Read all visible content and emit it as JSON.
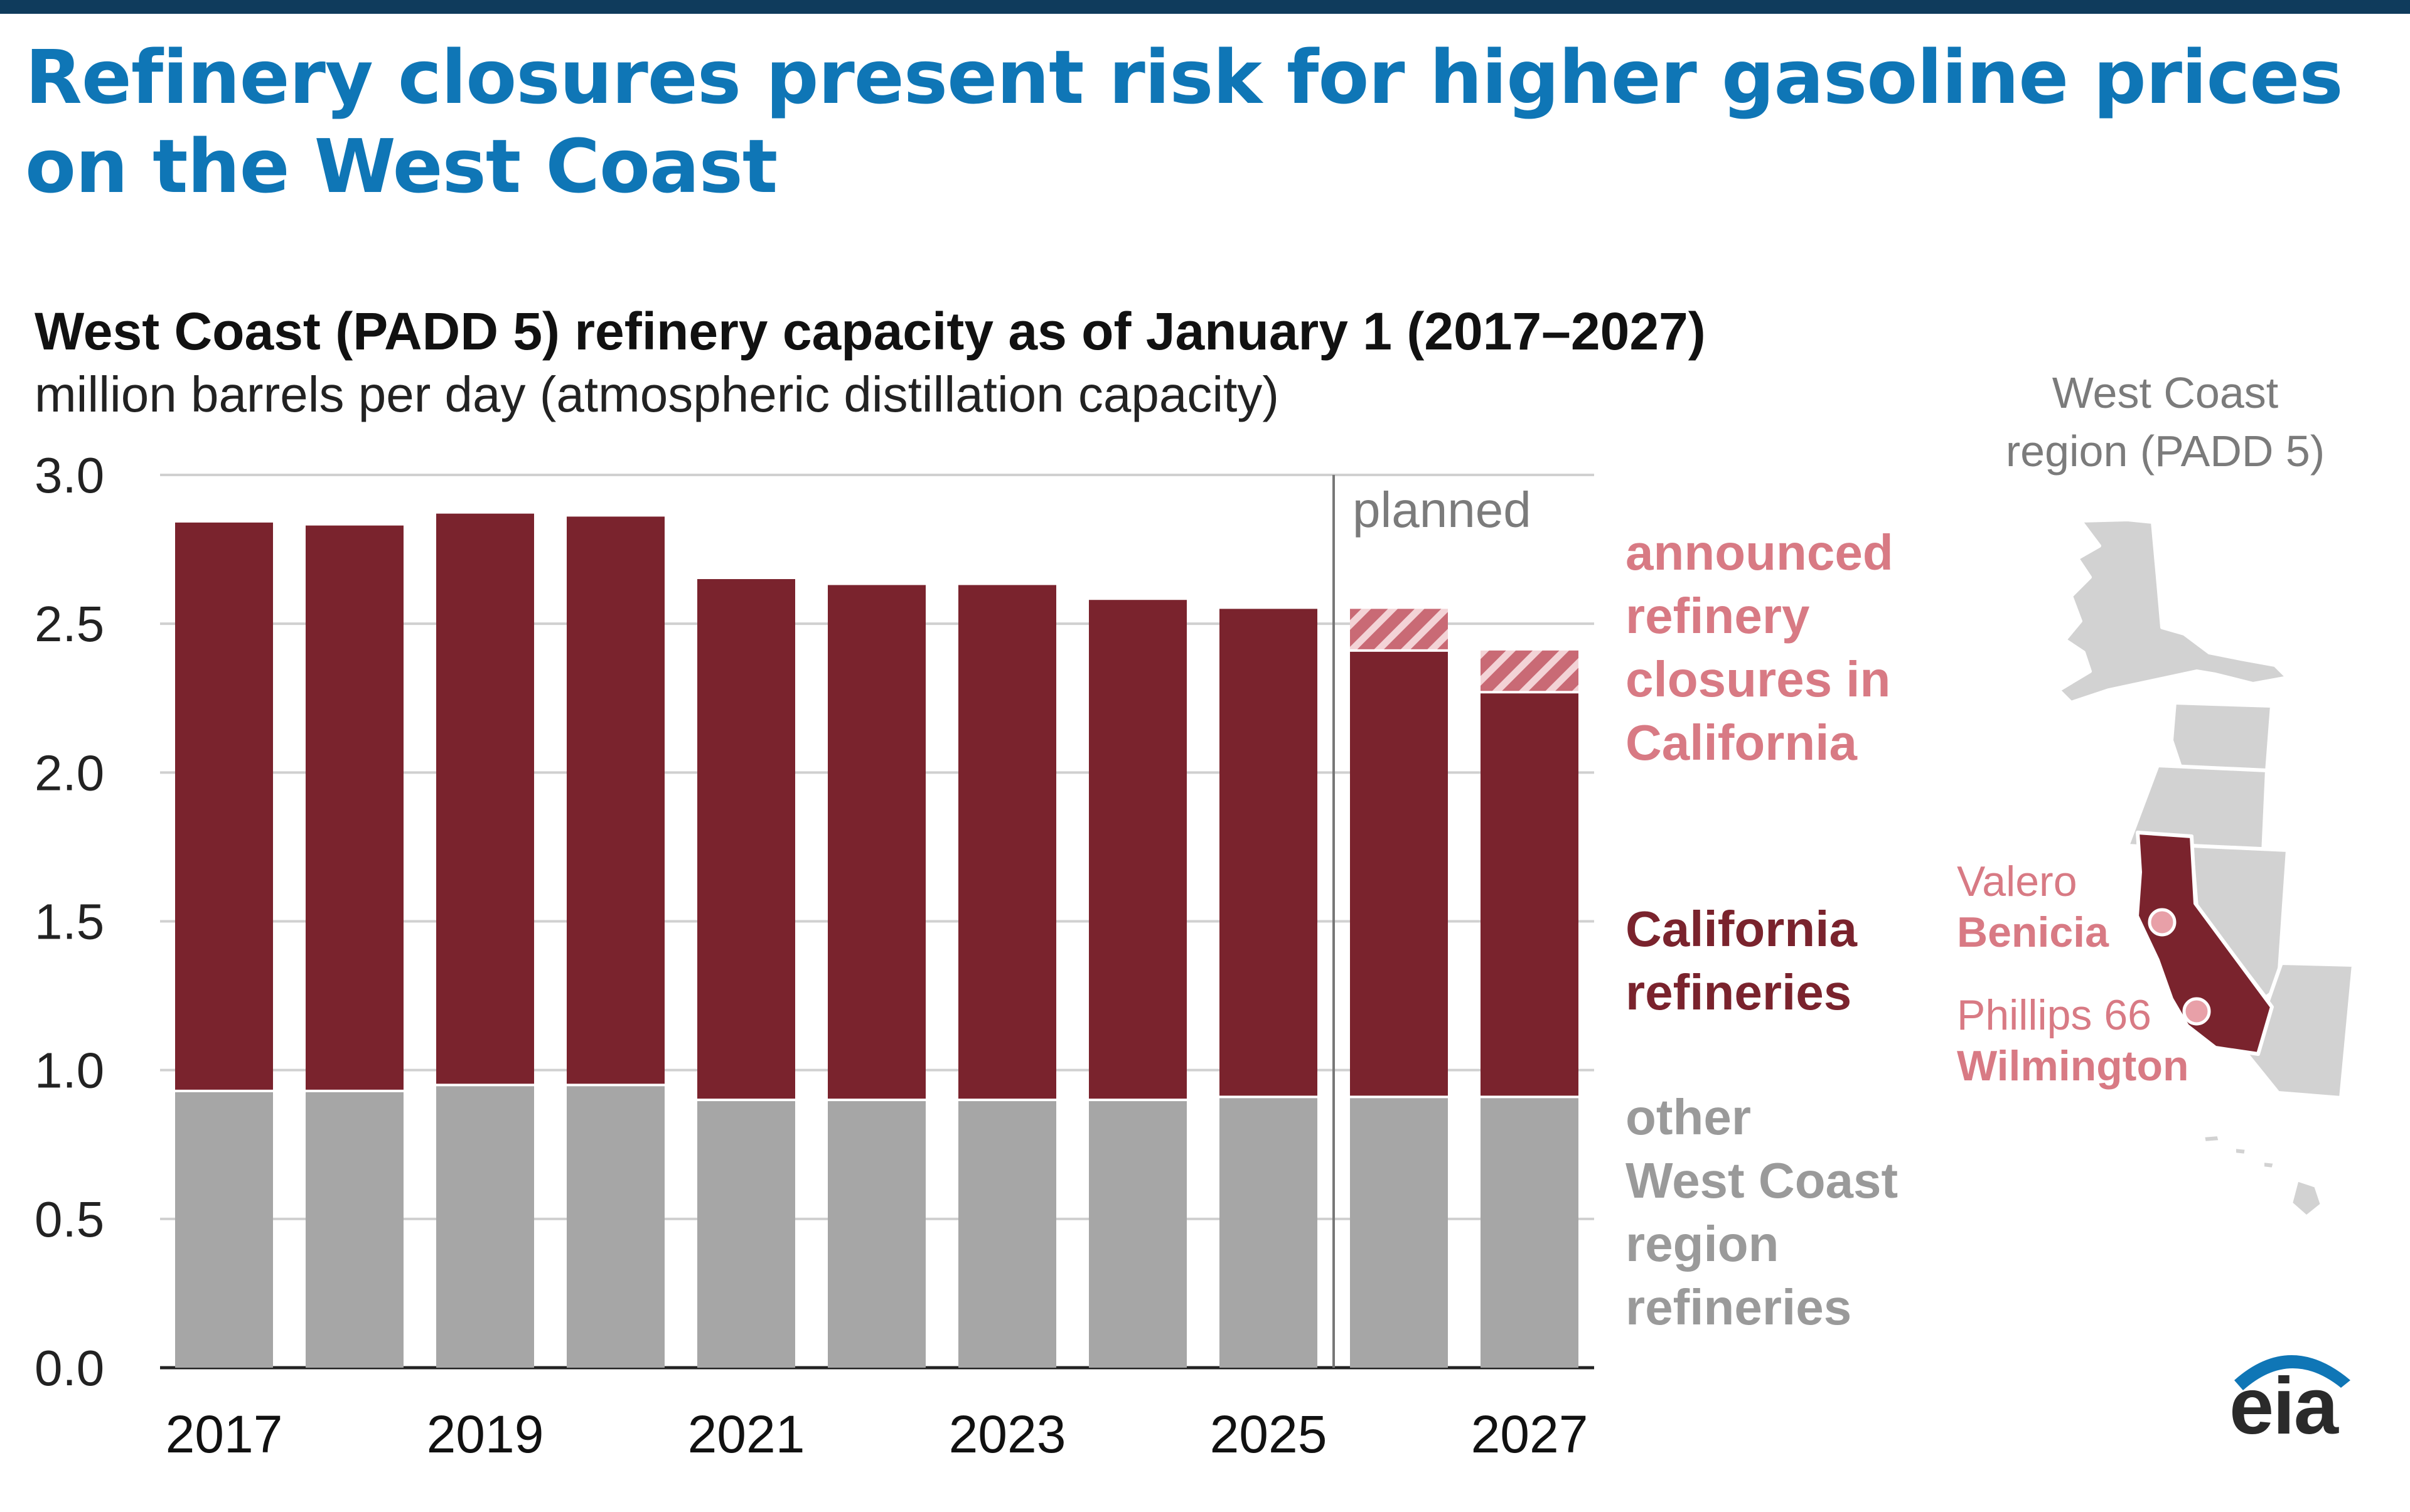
{
  "headline": "Refinery closures present risk for higher gasoline prices on the West Coast",
  "chart_data": {
    "type": "bar",
    "stacked": true,
    "title": "West Coast (PADD 5) refinery capacity as of January 1 (2017–2027)",
    "subtitle": "million barrels per day (atmospheric distillation capacity)",
    "categories": [
      "2017",
      "2018",
      "2019",
      "2020",
      "2021",
      "2022",
      "2023",
      "2024",
      "2025",
      "2026",
      "2027"
    ],
    "x_tick_labels": [
      "2017",
      "2019",
      "2021",
      "2023",
      "2025",
      "2027"
    ],
    "ylim": [
      0,
      3.0
    ],
    "y_ticks": [
      "0.0",
      "0.5",
      "1.0",
      "1.5",
      "2.0",
      "2.5",
      "3.0"
    ],
    "series": [
      {
        "name": "other West Coast region refineries",
        "color": "#a6a6a6",
        "values": [
          0.93,
          0.93,
          0.95,
          0.95,
          0.9,
          0.9,
          0.9,
          0.9,
          0.91,
          0.91,
          0.91
        ]
      },
      {
        "name": "California refineries",
        "color": "#7a232d",
        "values": [
          1.91,
          1.9,
          1.92,
          1.91,
          1.75,
          1.73,
          1.73,
          1.68,
          1.64,
          1.5,
          1.36
        ]
      },
      {
        "name": "announced refinery closures in California",
        "color": "#d87a84",
        "pattern": "hatched",
        "values": [
          0,
          0,
          0,
          0,
          0,
          0,
          0,
          0,
          0,
          0.14,
          0.14
        ]
      }
    ],
    "planned_divider_after": "2025",
    "planned_label": "planned",
    "legend": {
      "closures": [
        "announced",
        "refinery",
        "closures in",
        "California"
      ],
      "california": [
        "California",
        "refineries"
      ],
      "other": [
        "other",
        "West Coast",
        "region",
        "refineries"
      ]
    }
  },
  "map": {
    "title_lines": [
      "West Coast",
      "region (PADD 5)"
    ],
    "refineries": [
      {
        "company": "Valero",
        "site": "Benicia"
      },
      {
        "company": "Phillips 66",
        "site": "Wilmington"
      }
    ]
  },
  "logo_text": "eia",
  "colors": {
    "headline": "#0f76b6",
    "top_bar": "#0f3b5c",
    "california": "#7a232d",
    "other": "#a6a6a6",
    "closures": "#d87a84",
    "map_state": "#d2d2d2"
  }
}
